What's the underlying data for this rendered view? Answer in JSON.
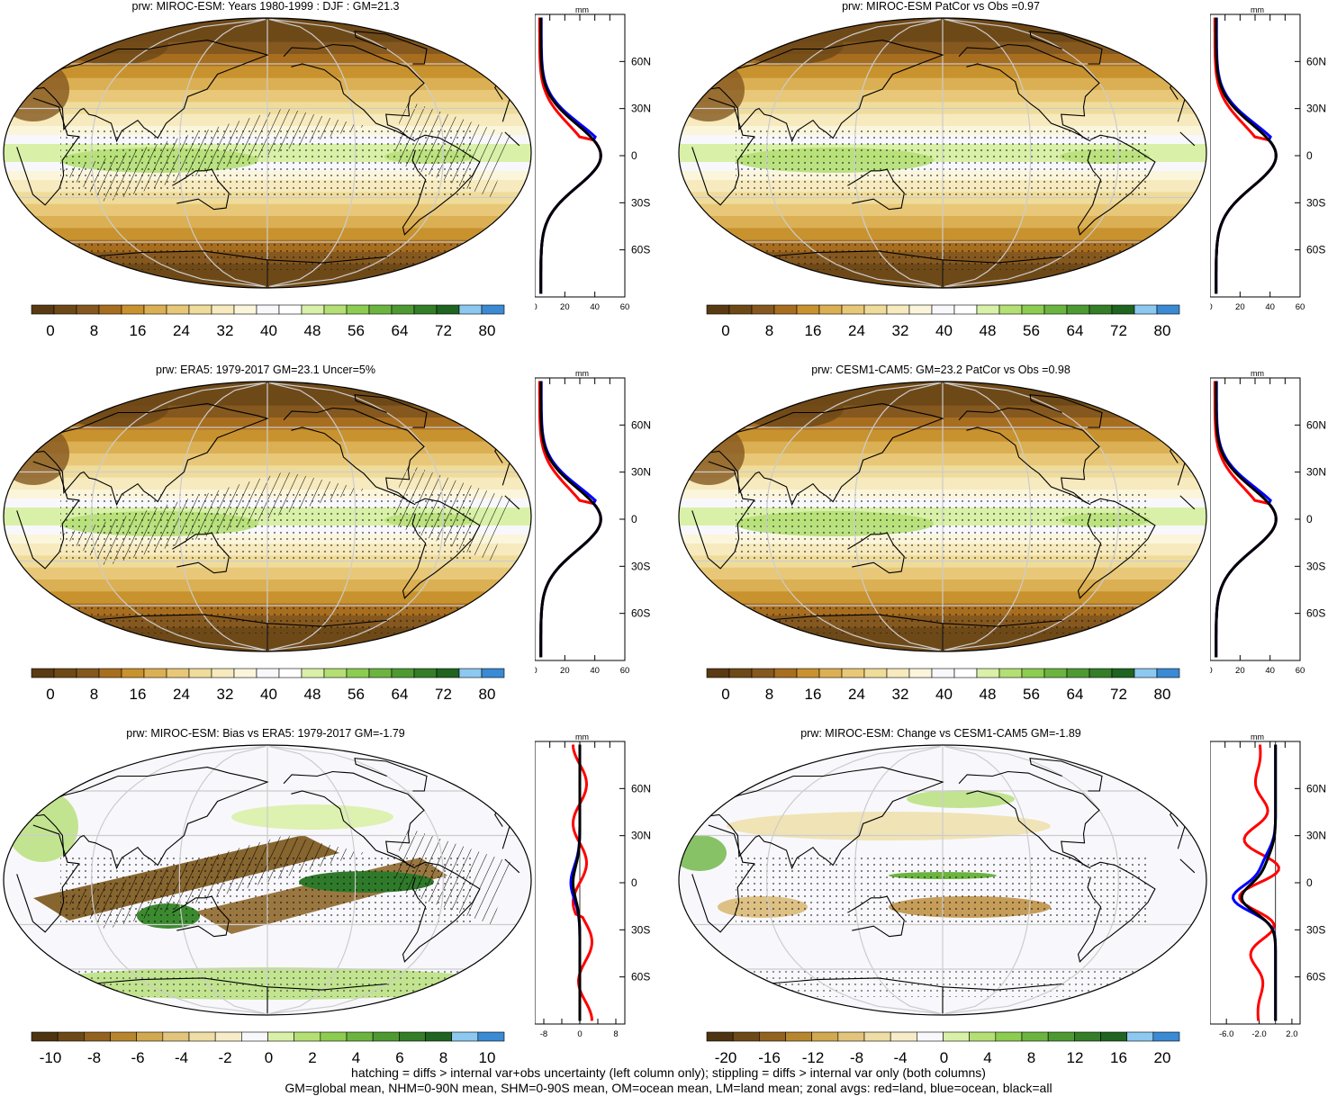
{
  "footer": {
    "line1": "hatching = diffs > internal var+obs uncertainty (left column only); stippling = diffs > internal var only (both columns)",
    "line2": "GM=global mean, NHM=0-90N mean, SHM=0-90S mean, OM=ocean mean, LM=land mean; zonal avgs: red=land, blue=ocean, black=all"
  },
  "colors": {
    "absolute": [
      "#5a3a12",
      "#6e4918",
      "#85581f",
      "#a86e1f",
      "#c8922e",
      "#dbb054",
      "#e8c878",
      "#f0dc9a",
      "#f6eabe",
      "#fbf5dc",
      "#f8f8fc",
      "#ffffff",
      "#d9f0a8",
      "#b4df74",
      "#8ccc50",
      "#6cb440",
      "#4e9a32",
      "#347e28",
      "#1f6420",
      "#8cc8f0",
      "#3a8ad4"
    ],
    "diverging": [
      "#4e3410",
      "#6e4918",
      "#93621f",
      "#b8862f",
      "#d2a850",
      "#e2c47c",
      "#eedda4",
      "#f6ecc8",
      "#f8f8fc",
      "#d9f0a8",
      "#b4df74",
      "#8ccc50",
      "#6cb440",
      "#4e9a32",
      "#347e28",
      "#1f6420",
      "#8cc8f0",
      "#3a8ad4"
    ],
    "land_line": "#ff0000",
    "ocean_line": "#0000ff",
    "all_line": "#000000"
  },
  "panels": [
    {
      "title": "prw: MIROC-ESM: Years 1980-1999 : DJF : GM=21.3",
      "type": "absolute",
      "colorbar_labels": [
        "0",
        "8",
        "16",
        "24",
        "32",
        "40",
        "48",
        "56",
        "64",
        "72",
        "80"
      ],
      "zonal": {
        "unit": "mm",
        "x_ticks": [
          "0",
          "20",
          "40",
          "60"
        ],
        "lat_labels": [
          "60N",
          "30N",
          "0",
          "30S",
          "60S"
        ]
      },
      "hatching": true
    },
    {
      "title": "prw: MIROC-ESM PatCor vs Obs =0.97",
      "type": "absolute",
      "colorbar_labels": [
        "0",
        "8",
        "16",
        "24",
        "32",
        "40",
        "48",
        "56",
        "64",
        "72",
        "80"
      ],
      "zonal": {
        "unit": "mm",
        "x_ticks": [
          "0",
          "20",
          "40",
          "60"
        ],
        "lat_labels": [
          "60N",
          "30N",
          "0",
          "30S",
          "60S"
        ]
      },
      "hatching": false
    },
    {
      "title": "prw: ERA5: 1979-2017 GM=23.1 Uncer=5%",
      "type": "absolute",
      "colorbar_labels": [
        "0",
        "8",
        "16",
        "24",
        "32",
        "40",
        "48",
        "56",
        "64",
        "72",
        "80"
      ],
      "zonal": {
        "unit": "mm",
        "x_ticks": [
          "0",
          "20",
          "40",
          "60"
        ],
        "lat_labels": [
          "60N",
          "30N",
          "0",
          "30S",
          "60S"
        ]
      },
      "hatching": true
    },
    {
      "title": "prw: CESM1-CAM5: GM=23.2 PatCor vs Obs =0.98",
      "type": "absolute",
      "colorbar_labels": [
        "0",
        "8",
        "16",
        "24",
        "32",
        "40",
        "48",
        "56",
        "64",
        "72",
        "80"
      ],
      "zonal": {
        "unit": "mm",
        "x_ticks": [
          "0",
          "20",
          "40",
          "60"
        ],
        "lat_labels": [
          "60N",
          "30N",
          "0",
          "30S",
          "60S"
        ]
      },
      "hatching": false
    },
    {
      "title": "prw: MIROC-ESM: Bias vs ERA5: 1979-2017 GM=-1.79",
      "type": "bias",
      "colorbar_labels": [
        "-10",
        "-8",
        "-6",
        "-4",
        "-2",
        "0",
        "2",
        "4",
        "6",
        "8",
        "10"
      ],
      "zonal": {
        "unit": "mm",
        "x_ticks": [
          "-8",
          "-4",
          "0",
          "4",
          "8"
        ],
        "x_tick_labels": [
          "-8",
          "0",
          "8"
        ],
        "lat_labels": [
          "60N",
          "30N",
          "0",
          "30S",
          "60S"
        ]
      },
      "hatching": true
    },
    {
      "title": "prw: MIROC-ESM: Change vs CESM1-CAM5 GM=-1.89",
      "type": "change",
      "colorbar_labels": [
        "-20",
        "-16",
        "-12",
        "-8",
        "-4",
        "0",
        "4",
        "8",
        "12",
        "16",
        "20"
      ],
      "zonal": {
        "unit": "mm",
        "x_ticks": [
          "-6.0",
          "-2.0",
          "2.0"
        ],
        "lat_labels": [
          "60N",
          "30N",
          "0",
          "30S",
          "60S"
        ]
      },
      "hatching": false
    }
  ]
}
